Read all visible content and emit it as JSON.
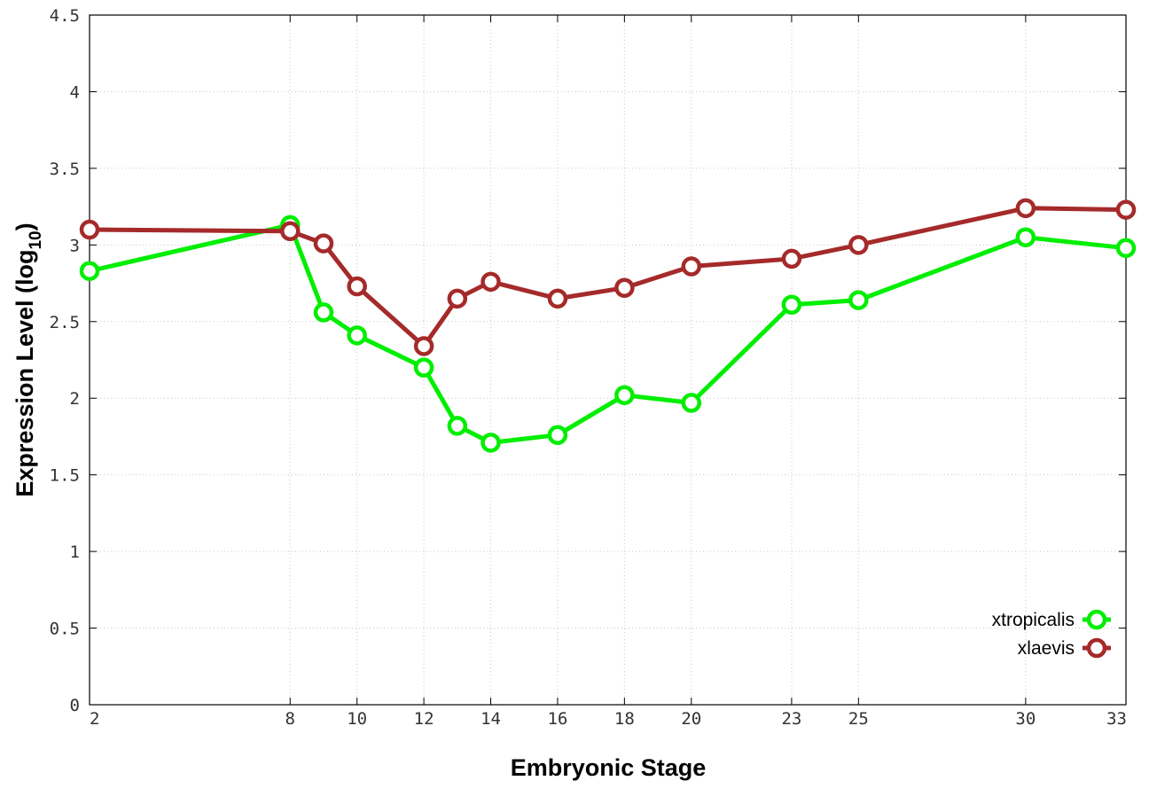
{
  "chart_data": {
    "type": "line",
    "xlabel": "Embryonic Stage",
    "ylabel_main": "Expression Level (log",
    "ylabel_sub": "10",
    "ylabel_close": ")",
    "x_ticks": [
      2,
      8,
      10,
      12,
      14,
      16,
      18,
      20,
      23,
      25,
      30,
      33
    ],
    "x_tick_labels": [
      "2",
      "8",
      "10",
      "12",
      "14",
      "16",
      "18",
      "20",
      "23",
      "25",
      "30",
      "33"
    ],
    "y_ticks": [
      0,
      0.5,
      1,
      1.5,
      2,
      2.5,
      3,
      3.5,
      4,
      4.5
    ],
    "y_tick_labels": [
      "0",
      "0.5",
      "1",
      "1.5",
      "2",
      "2.5",
      "3",
      "3.5",
      "4",
      "4.5"
    ],
    "xlim": [
      2,
      33
    ],
    "ylim": [
      0,
      4.5
    ],
    "grid": true,
    "legend_position": "bottom-right",
    "series": [
      {
        "name": "xtropicalis",
        "color": "#00ee00",
        "x": [
          2,
          8,
          9,
          10,
          12,
          13,
          14,
          16,
          18,
          20,
          23,
          25,
          30,
          33
        ],
        "values": [
          2.83,
          3.13,
          2.56,
          2.41,
          2.2,
          1.82,
          1.71,
          1.76,
          2.02,
          1.97,
          2.61,
          2.64,
          3.05,
          2.98
        ]
      },
      {
        "name": "xlaevis",
        "color": "#a52a2a",
        "x": [
          2,
          8,
          9,
          10,
          12,
          13,
          14,
          16,
          18,
          20,
          23,
          25,
          30,
          33
        ],
        "values": [
          3.1,
          3.09,
          3.01,
          2.73,
          2.34,
          2.65,
          2.76,
          2.65,
          2.72,
          2.86,
          2.91,
          3.0,
          3.24,
          3.23
        ]
      }
    ]
  }
}
